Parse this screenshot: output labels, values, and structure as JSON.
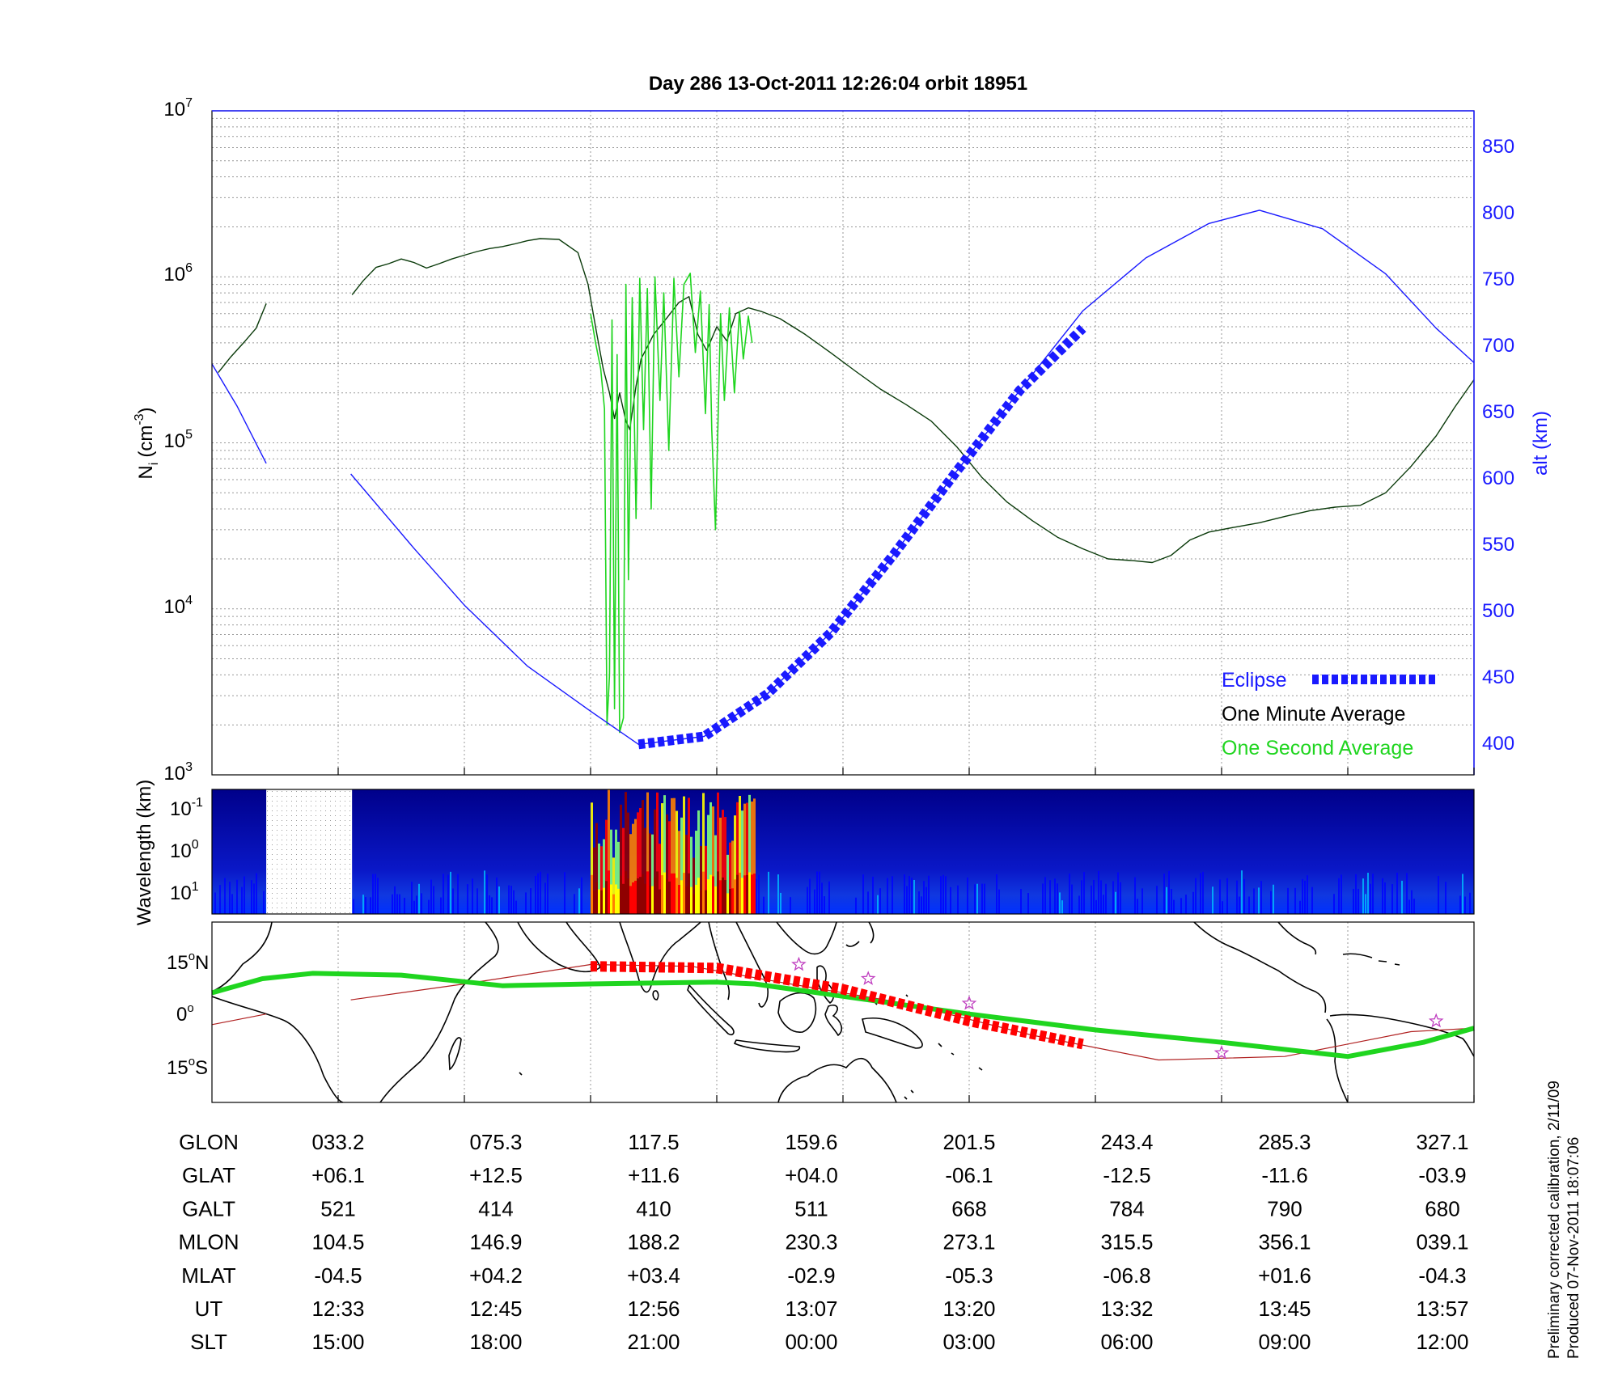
{
  "chart_data": [
    {
      "type": "line",
      "title": "Day 286  13-Oct-2011 12:26:04   orbit 18951",
      "x_range": [
        0,
        10
      ],
      "y_left": {
        "label_main": "N",
        "label_sub": "i",
        "label_unit": "(cm",
        "label_unit_exp": "-3",
        "label_close": ")",
        "scale": "log",
        "range": [
          1000,
          10000000
        ],
        "ticks": [
          {
            "base": "10",
            "exp": "3"
          },
          {
            "base": "10",
            "exp": "4"
          },
          {
            "base": "10",
            "exp": "5"
          },
          {
            "base": "10",
            "exp": "6"
          },
          {
            "base": "10",
            "exp": "7"
          }
        ]
      },
      "y_right": {
        "label": "alt (km)",
        "range": [
          377,
          878
        ],
        "ticks": [
          "400",
          "450",
          "500",
          "550",
          "600",
          "650",
          "700",
          "750",
          "800",
          "850"
        ],
        "color": "#1a1aff"
      },
      "grid": true,
      "legend": {
        "position": "bottom-right",
        "items": [
          {
            "label": "Eclipse",
            "color": "#1a1aff"
          },
          {
            "label": "One Minute Average",
            "color": "#000000"
          },
          {
            "label": "One Second Average",
            "color": "#1fd51f"
          }
        ]
      },
      "series": [
        {
          "name": "One Minute Average",
          "color": "#0a3a0a",
          "segments": [
            [
              [
                0.05,
                265000.0
              ],
              [
                0.15,
                330000.0
              ],
              [
                0.25,
                400000.0
              ],
              [
                0.35,
                490000.0
              ],
              [
                0.43,
                690000.0
              ]
            ],
            [
              [
                1.11,
                780000.0
              ],
              [
                1.2,
                950000.0
              ],
              [
                1.3,
                1140000.0
              ],
              [
                1.4,
                1200000.0
              ],
              [
                1.5,
                1280000.0
              ],
              [
                1.6,
                1220000.0
              ],
              [
                1.7,
                1130000.0
              ],
              [
                1.8,
                1200000.0
              ],
              [
                1.9,
                1280000.0
              ],
              [
                2.0,
                1350000.0
              ],
              [
                2.1,
                1420000.0
              ],
              [
                2.2,
                1480000.0
              ],
              [
                2.3,
                1520000.0
              ],
              [
                2.4,
                1580000.0
              ],
              [
                2.5,
                1650000.0
              ],
              [
                2.6,
                1700000.0
              ],
              [
                2.75,
                1680000.0
              ],
              [
                2.9,
                1400000.0
              ],
              [
                2.98,
                900000.0
              ],
              [
                3.05,
                450000.0
              ],
              [
                3.1,
                280000.0
              ],
              [
                3.15,
                200000.0
              ],
              [
                3.19,
                140000.0
              ],
              [
                3.23,
                200000.0
              ],
              [
                3.28,
                135000.0
              ],
              [
                3.31,
                120000.0
              ],
              [
                3.36,
                220000.0
              ],
              [
                3.4,
                320000.0
              ],
              [
                3.5,
                450000.0
              ],
              [
                3.6,
                560000.0
              ],
              [
                3.7,
                700000.0
              ],
              [
                3.78,
                760000.0
              ],
              [
                3.85,
                450000.0
              ],
              [
                3.92,
                360000.0
              ],
              [
                4.0,
                500000.0
              ],
              [
                4.08,
                410000.0
              ],
              [
                4.15,
                600000.0
              ],
              [
                4.25,
                650000.0
              ],
              [
                4.35,
                620000.0
              ],
              [
                4.5,
                560000.0
              ],
              [
                4.7,
                450000.0
              ],
              [
                4.9,
                350000.0
              ],
              [
                5.1,
                270000.0
              ],
              [
                5.3,
                210000.0
              ],
              [
                5.5,
                170000.0
              ],
              [
                5.7,
                135000.0
              ],
              [
                5.9,
                95000.0
              ],
              [
                6.1,
                62000.0
              ],
              [
                6.3,
                44000.0
              ],
              [
                6.5,
                34000.0
              ],
              [
                6.7,
                27000.0
              ],
              [
                6.9,
                23000.0
              ],
              [
                7.1,
                20000.0
              ],
              [
                7.3,
                19500.0
              ],
              [
                7.45,
                19000.0
              ],
              [
                7.6,
                21000.0
              ],
              [
                7.75,
                26000.0
              ],
              [
                7.9,
                29000.0
              ],
              [
                8.1,
                31000.0
              ],
              [
                8.3,
                33000.0
              ],
              [
                8.5,
                36000.0
              ],
              [
                8.7,
                39000.0
              ],
              [
                8.9,
                41000.0
              ],
              [
                9.1,
                42000.0
              ],
              [
                9.3,
                50000.0
              ],
              [
                9.5,
                72000.0
              ],
              [
                9.7,
                110000.0
              ],
              [
                9.85,
                165000.0
              ],
              [
                10.0,
                240000.0
              ]
            ]
          ]
        },
        {
          "name": "One Second Average",
          "color": "#1fd51f",
          "segments": [
            [
              [
                3.0,
                600000.0
              ],
              [
                3.04,
                400000.0
              ],
              [
                3.08,
                280000.0
              ],
              [
                3.11,
                160000.0
              ],
              [
                3.13,
                2000
              ],
              [
                3.15,
                4000
              ],
              [
                3.17,
                550000.0
              ],
              [
                3.19,
                2500
              ],
              [
                3.21,
                340000.0
              ],
              [
                3.23,
                1800
              ],
              [
                3.26,
                2200
              ],
              [
                3.28,
                900000.0
              ],
              [
                3.3,
                15000.0
              ],
              [
                3.33,
                750000.0
              ],
              [
                3.36,
                35000.0
              ],
              [
                3.39,
                980000.0
              ],
              [
                3.42,
                120000.0
              ],
              [
                3.45,
                850000.0
              ],
              [
                3.48,
                40000.0
              ],
              [
                3.51,
                1000000.0
              ],
              [
                3.55,
                180000.0
              ],
              [
                3.58,
                800000.0
              ],
              [
                3.62,
                90000.0
              ],
              [
                3.66,
                980000.0
              ],
              [
                3.7,
                250000.0
              ],
              [
                3.74,
                900000.0
              ],
              [
                3.79,
                1050000.0
              ],
              [
                3.83,
                350000.0
              ],
              [
                3.87,
                820000.0
              ],
              [
                3.91,
                150000.0
              ],
              [
                3.94,
                680000.0
              ],
              [
                3.96,
                120000.0
              ],
              [
                3.99,
                30000.0
              ],
              [
                4.03,
                600000.0
              ],
              [
                4.06,
                180000.0
              ],
              [
                4.1,
                650000.0
              ],
              [
                4.14,
                200000.0
              ],
              [
                4.18,
                620000.0
              ],
              [
                4.21,
                320000.0
              ],
              [
                4.25,
                580000.0
              ],
              [
                4.28,
                400000.0
              ]
            ]
          ]
        },
        {
          "name": "Altitude",
          "axis": "right",
          "color": "#1a1aff",
          "segments": [
            [
              [
                0.0,
                687
              ],
              [
                0.2,
                655
              ],
              [
                0.43,
                612
              ]
            ],
            [
              [
                1.1,
                604
              ],
              [
                1.6,
                548
              ],
              [
                2.0,
                505
              ],
              [
                2.5,
                459
              ],
              [
                3.0,
                425
              ],
              [
                3.38,
                400
              ],
              [
                3.9,
                406
              ],
              [
                4.4,
                438
              ],
              [
                4.9,
                484
              ],
              [
                5.4,
                543
              ],
              [
                5.9,
                606
              ],
              [
                6.4,
                667
              ],
              [
                6.9,
                727
              ],
              [
                7.4,
                767
              ],
              [
                7.9,
                793
              ],
              [
                8.3,
                803
              ],
              [
                8.8,
                789
              ],
              [
                9.3,
                755
              ],
              [
                9.7,
                714
              ],
              [
                10.0,
                688
              ]
            ]
          ]
        },
        {
          "name": "Eclipse",
          "axis": "right",
          "style": "dashed-thick",
          "color": "#1a1aff",
          "segments": [
            [
              [
                3.38,
                400
              ],
              [
                3.9,
                406
              ],
              [
                4.4,
                438
              ],
              [
                4.9,
                484
              ],
              [
                5.4,
                543
              ],
              [
                5.9,
                606
              ],
              [
                6.4,
                667
              ],
              [
                6.9,
                714
              ]
            ]
          ]
        }
      ],
      "x_tick_positions": [
        1.0,
        2.0,
        3.0,
        4.0,
        5.0,
        6.0,
        7.0,
        8.0,
        9.0,
        10.0
      ]
    },
    {
      "type": "heatmap",
      "ylabel_main": "Wavelength (km)",
      "y_ticks": [
        {
          "base": "10",
          "exp": "-1"
        },
        {
          "base": "10",
          "exp": "0"
        },
        {
          "base": "10",
          "exp": "1"
        }
      ],
      "x_range": [
        0,
        10
      ],
      "gap": [
        0.43,
        1.11
      ],
      "active_band": [
        3.0,
        4.3
      ],
      "colormap": [
        "#00008f",
        "#0000ff",
        "#00bfff",
        "#7fff7f",
        "#ffff00",
        "#ff7f00",
        "#ff0000",
        "#8f0000"
      ]
    },
    {
      "type": "map",
      "y_ticks": [
        {
          "deg": "15",
          "sym": "o",
          "hem": "N"
        },
        {
          "deg": "0",
          "sym": "o",
          "hem": ""
        },
        {
          "deg": "15",
          "sym": "o",
          "hem": "S"
        }
      ],
      "lat_range": [
        -25,
        26
      ],
      "colors": {
        "track": "#1fd51f",
        "eclipse": "#ff0000",
        "magnetic_equator": "#b02020",
        "stars": "#c040c0"
      }
    }
  ],
  "table": {
    "rows": [
      {
        "label": "GLON",
        "values": [
          "033.2",
          "075.3",
          "117.5",
          "159.6",
          "201.5",
          "243.4",
          "285.3",
          "327.1"
        ]
      },
      {
        "label": "GLAT",
        "values": [
          "+06.1",
          "+12.5",
          "+11.6",
          "+04.0",
          "-06.1",
          "-12.5",
          "-11.6",
          "-03.9"
        ]
      },
      {
        "label": "GALT",
        "values": [
          "521",
          "414",
          "410",
          "511",
          "668",
          "784",
          "790",
          "680"
        ]
      },
      {
        "label": "MLON",
        "values": [
          "104.5",
          "146.9",
          "188.2",
          "230.3",
          "273.1",
          "315.5",
          "356.1",
          "039.1"
        ]
      },
      {
        "label": "MLAT",
        "values": [
          "-04.5",
          "+04.2",
          "+03.4",
          "-02.9",
          "-05.3",
          "-06.8",
          "+01.6",
          "-04.3"
        ]
      },
      {
        "label": "UT",
        "values": [
          "12:33",
          "12:45",
          "12:56",
          "13:07",
          "13:20",
          "13:32",
          "13:45",
          "13:57"
        ]
      },
      {
        "label": "SLT",
        "values": [
          "15:00",
          "18:00",
          "21:00",
          "00:00",
          "03:00",
          "06:00",
          "09:00",
          "12:00"
        ]
      }
    ]
  },
  "footer": {
    "line1": "Preliminary corrected calibration, 2/11/09",
    "line2": "Produced 07-Nov-2011 18:07:06"
  }
}
